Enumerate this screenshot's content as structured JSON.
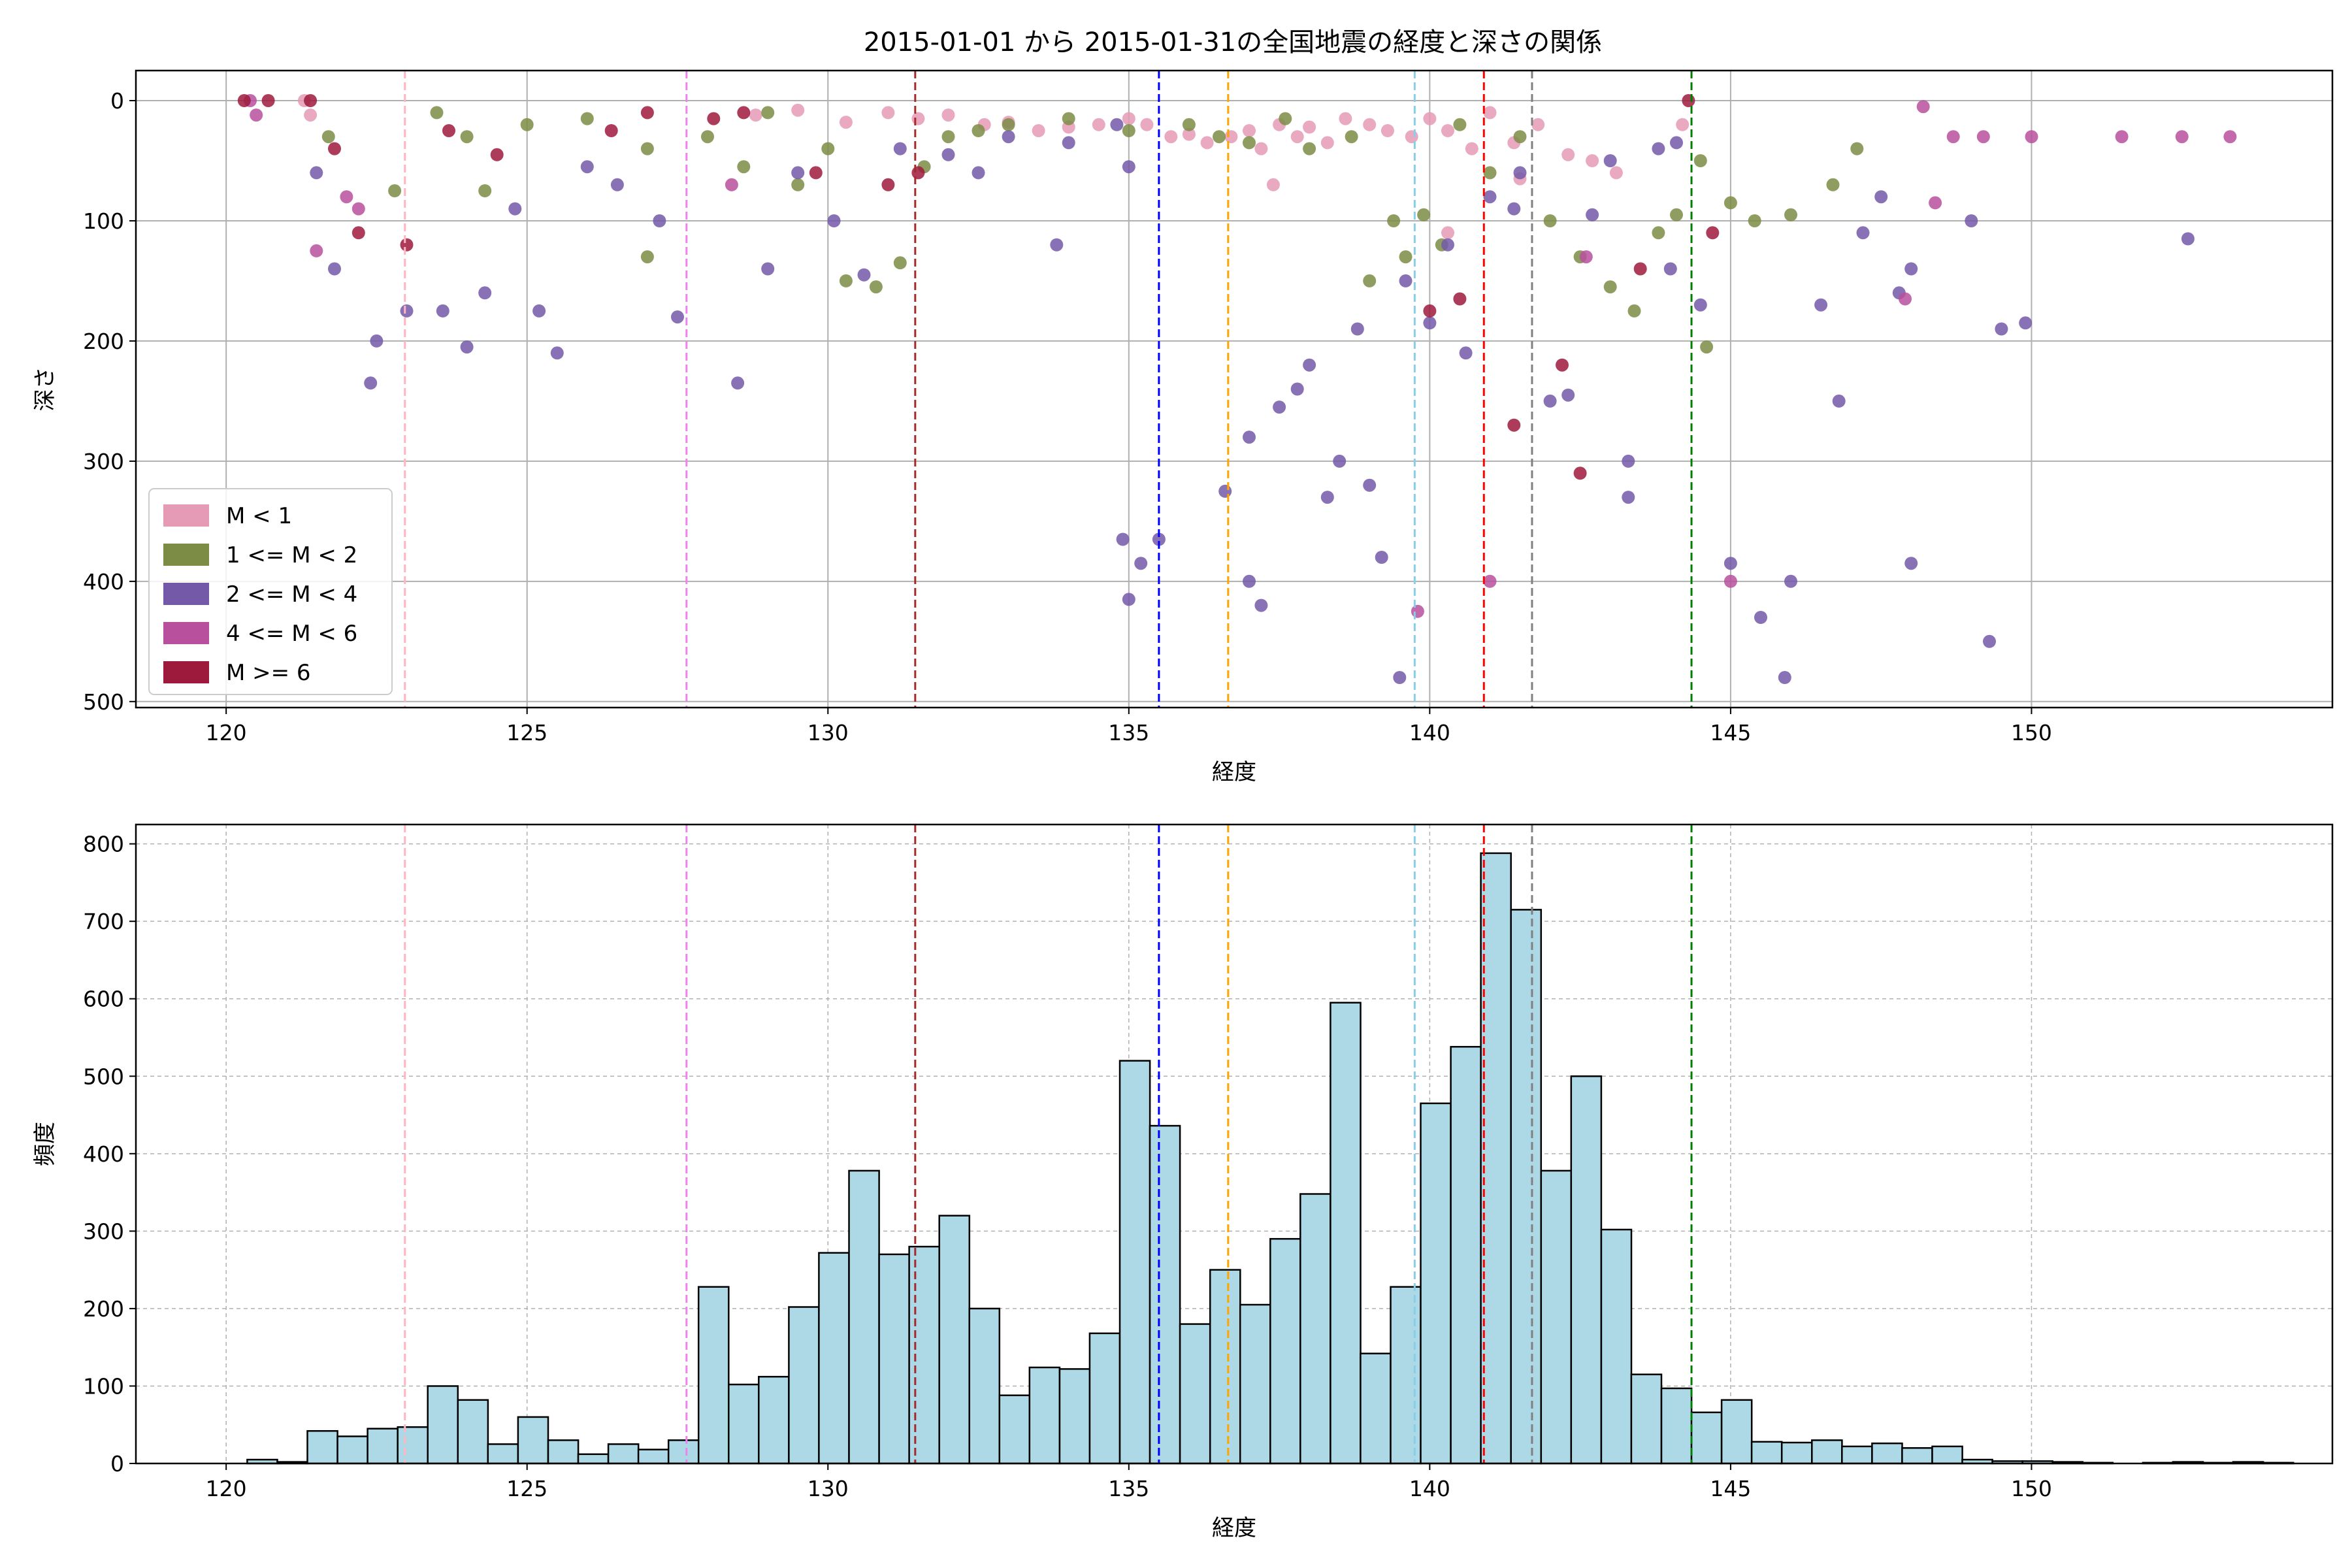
{
  "figure": {
    "title": "2015-01-01 から 2015-01-31の全国地震の経度と深さの関係"
  },
  "reference_lines": [
    {
      "x": 122.97,
      "color": "#ffb6c1"
    },
    {
      "x": 127.65,
      "color": "#ee82ee"
    },
    {
      "x": 131.45,
      "color": "#a52a2a"
    },
    {
      "x": 135.5,
      "color": "#0000ff"
    },
    {
      "x": 136.65,
      "color": "#ffa500"
    },
    {
      "x": 139.75,
      "color": "#87ceeb"
    },
    {
      "x": 140.9,
      "color": "#ff0000"
    },
    {
      "x": 141.7,
      "color": "#808080"
    },
    {
      "x": 144.35,
      "color": "#008000"
    }
  ],
  "chart_data": [
    {
      "type": "scatter",
      "title": "2015-01-01 から 2015-01-31の全国地震の経度と深さの関係",
      "xlabel": "経度",
      "ylabel": "深さ",
      "xlim": [
        118.5,
        155
      ],
      "ylim": [
        505,
        -25
      ],
      "y_inverted": true,
      "xticks": [
        "120",
        "125",
        "130",
        "135",
        "140",
        "145",
        "150"
      ],
      "yticks": [
        "0",
        "100",
        "200",
        "300",
        "400",
        "500"
      ],
      "grid": true,
      "legend_placement": "lower-left",
      "legend": [
        {
          "label": "M < 1",
          "color": "#e59bb6"
        },
        {
          "label": "1 <= M < 2",
          "color": "#7c8c45"
        },
        {
          "label": "2 <= M < 4",
          "color": "#7359a8"
        },
        {
          "label": "4 <= M < 6",
          "color": "#b8509e"
        },
        {
          "label": "M >= 6",
          "color": "#9e1a3c"
        }
      ],
      "series": [
        {
          "name": "M < 1",
          "color": "#e59bb6",
          "points": [
            [
              131.0,
              10
            ],
            [
              131.5,
              15
            ],
            [
              132.0,
              12
            ],
            [
              132.6,
              20
            ],
            [
              133.0,
              18
            ],
            [
              133.5,
              25
            ],
            [
              134.0,
              22
            ],
            [
              134.5,
              20
            ],
            [
              135.0,
              15
            ],
            [
              135.3,
              20
            ],
            [
              135.7,
              30
            ],
            [
              136.0,
              28
            ],
            [
              136.3,
              35
            ],
            [
              136.7,
              30
            ],
            [
              137.0,
              25
            ],
            [
              137.2,
              40
            ],
            [
              137.5,
              20
            ],
            [
              137.8,
              30
            ],
            [
              138.0,
              22
            ],
            [
              138.3,
              35
            ],
            [
              138.6,
              15
            ],
            [
              139.0,
              20
            ],
            [
              139.3,
              25
            ],
            [
              139.7,
              30
            ],
            [
              140.0,
              15
            ],
            [
              140.3,
              25
            ],
            [
              140.7,
              40
            ],
            [
              141.0,
              10
            ],
            [
              141.4,
              35
            ],
            [
              141.8,
              20
            ],
            [
              142.3,
              45
            ],
            [
              142.7,
              50
            ],
            [
              143.1,
              60
            ],
            [
              128.8,
              12
            ],
            [
              129.5,
              8
            ],
            [
              130.3,
              18
            ],
            [
              121.3,
              0
            ],
            [
              121.4,
              12
            ],
            [
              137.4,
              70
            ],
            [
              141.5,
              65
            ],
            [
              140.3,
              110
            ],
            [
              144.2,
              20
            ]
          ]
        },
        {
          "name": "1 <= M < 2",
          "color": "#7c8c45",
          "points": [
            [
              123.5,
              10
            ],
            [
              124.0,
              30
            ],
            [
              124.3,
              75
            ],
            [
              125.0,
              20
            ],
            [
              126.0,
              15
            ],
            [
              127.0,
              40
            ],
            [
              128.0,
              30
            ],
            [
              128.6,
              55
            ],
            [
              129.0,
              10
            ],
            [
              129.5,
              70
            ],
            [
              130.0,
              40
            ],
            [
              130.3,
              150
            ],
            [
              130.8,
              155
            ],
            [
              131.2,
              135
            ],
            [
              131.6,
              55
            ],
            [
              132.0,
              30
            ],
            [
              132.5,
              25
            ],
            [
              133.0,
              20
            ],
            [
              134.0,
              15
            ],
            [
              135.0,
              25
            ],
            [
              136.0,
              20
            ],
            [
              136.5,
              30
            ],
            [
              137.0,
              35
            ],
            [
              137.6,
              15
            ],
            [
              138.0,
              40
            ],
            [
              138.7,
              30
            ],
            [
              139.0,
              150
            ],
            [
              139.4,
              100
            ],
            [
              139.6,
              130
            ],
            [
              139.9,
              95
            ],
            [
              140.2,
              120
            ],
            [
              140.5,
              20
            ],
            [
              141.0,
              60
            ],
            [
              141.5,
              30
            ],
            [
              142.0,
              100
            ],
            [
              142.5,
              130
            ],
            [
              143.0,
              155
            ],
            [
              143.4,
              175
            ],
            [
              143.8,
              110
            ],
            [
              144.1,
              95
            ],
            [
              144.5,
              50
            ],
            [
              145.0,
              85
            ],
            [
              145.4,
              100
            ],
            [
              146.0,
              95
            ],
            [
              146.7,
              70
            ],
            [
              147.1,
              40
            ],
            [
              144.6,
              205
            ],
            [
              127.0,
              130
            ],
            [
              121.7,
              30
            ],
            [
              122.8,
              75
            ]
          ]
        },
        {
          "name": "2 <= M < 4",
          "color": "#7359a8",
          "points": [
            [
              121.5,
              60
            ],
            [
              121.8,
              140
            ],
            [
              122.5,
              200
            ],
            [
              122.4,
              235
            ],
            [
              123.0,
              175
            ],
            [
              123.6,
              175
            ],
            [
              124.0,
              205
            ],
            [
              124.3,
              160
            ],
            [
              124.8,
              90
            ],
            [
              125.2,
              175
            ],
            [
              125.5,
              210
            ],
            [
              126.0,
              55
            ],
            [
              126.5,
              70
            ],
            [
              127.2,
              100
            ],
            [
              127.5,
              180
            ],
            [
              128.5,
              235
            ],
            [
              129.0,
              140
            ],
            [
              129.5,
              60
            ],
            [
              130.1,
              100
            ],
            [
              130.6,
              145
            ],
            [
              131.2,
              40
            ],
            [
              132.0,
              45
            ],
            [
              132.5,
              60
            ],
            [
              133.0,
              30
            ],
            [
              134.0,
              35
            ],
            [
              134.8,
              20
            ],
            [
              135.0,
              55
            ],
            [
              134.9,
              365
            ],
            [
              135.2,
              385
            ],
            [
              135.5,
              365
            ],
            [
              135.0,
              415
            ],
            [
              136.6,
              325
            ],
            [
              137.0,
              400
            ],
            [
              137.2,
              420
            ],
            [
              137.0,
              280
            ],
            [
              137.5,
              255
            ],
            [
              137.8,
              240
            ],
            [
              138.0,
              220
            ],
            [
              138.3,
              330
            ],
            [
              138.5,
              300
            ],
            [
              138.8,
              190
            ],
            [
              139.0,
              320
            ],
            [
              139.2,
              380
            ],
            [
              139.5,
              480
            ],
            [
              139.6,
              150
            ],
            [
              140.0,
              185
            ],
            [
              140.3,
              120
            ],
            [
              140.6,
              210
            ],
            [
              141.0,
              80
            ],
            [
              141.5,
              60
            ],
            [
              142.0,
              250
            ],
            [
              142.3,
              245
            ],
            [
              142.7,
              95
            ],
            [
              143.0,
              50
            ],
            [
              143.3,
              300
            ],
            [
              143.3,
              330
            ],
            [
              143.8,
              40
            ],
            [
              144.0,
              140
            ],
            [
              144.5,
              170
            ],
            [
              145.0,
              385
            ],
            [
              145.5,
              430
            ],
            [
              145.9,
              480
            ],
            [
              146.0,
              400
            ],
            [
              146.5,
              170
            ],
            [
              146.8,
              250
            ],
            [
              147.2,
              110
            ],
            [
              147.5,
              80
            ],
            [
              147.8,
              160
            ],
            [
              148.0,
              385
            ],
            [
              148.0,
              140
            ],
            [
              149.0,
              100
            ],
            [
              149.3,
              450
            ],
            [
              149.5,
              190
            ],
            [
              149.9,
              185
            ],
            [
              152.6,
              115
            ],
            [
              133.8,
              120
            ],
            [
              144.1,
              35
            ],
            [
              141.4,
              90
            ]
          ]
        },
        {
          "name": "4 <= M < 6",
          "color": "#b8509e",
          "points": [
            [
              120.4,
              0
            ],
            [
              120.5,
              12
            ],
            [
              121.5,
              125
            ],
            [
              122.0,
              80
            ],
            [
              122.2,
              90
            ],
            [
              128.4,
              70
            ],
            [
              139.8,
              425
            ],
            [
              141.0,
              400
            ],
            [
              142.6,
              130
            ],
            [
              145.0,
              400
            ],
            [
              147.9,
              165
            ],
            [
              148.2,
              5
            ],
            [
              148.4,
              85
            ],
            [
              148.7,
              30
            ],
            [
              149.2,
              30
            ],
            [
              150.0,
              30
            ],
            [
              151.5,
              30
            ],
            [
              152.5,
              30
            ],
            [
              153.3,
              30
            ]
          ]
        },
        {
          "name": "M >= 6",
          "color": "#9e1a3c",
          "points": [
            [
              120.3,
              0
            ],
            [
              120.7,
              0
            ],
            [
              121.4,
              0
            ],
            [
              121.8,
              40
            ],
            [
              122.2,
              110
            ],
            [
              123.0,
              120
            ],
            [
              123.7,
              25
            ],
            [
              124.5,
              45
            ],
            [
              126.4,
              25
            ],
            [
              127.0,
              10
            ],
            [
              128.1,
              15
            ],
            [
              128.6,
              10
            ],
            [
              129.8,
              60
            ],
            [
              131.0,
              70
            ],
            [
              131.5,
              60
            ],
            [
              140.0,
              175
            ],
            [
              140.5,
              165
            ],
            [
              141.4,
              270
            ],
            [
              142.2,
              220
            ],
            [
              142.5,
              310
            ],
            [
              143.5,
              140
            ],
            [
              144.3,
              0
            ],
            [
              144.7,
              110
            ]
          ]
        }
      ]
    },
    {
      "type": "bar",
      "title": "",
      "xlabel": "経度",
      "ylabel": "頻度",
      "xlim": [
        118.5,
        155
      ],
      "ylim": [
        0,
        825
      ],
      "xticks": [
        "120",
        "125",
        "130",
        "135",
        "140",
        "145",
        "150"
      ],
      "yticks": [
        "0",
        "100",
        "200",
        "300",
        "400",
        "500",
        "600",
        "700",
        "800"
      ],
      "grid": true,
      "bar_color": "#add8e6",
      "bin_start": 120.35,
      "bin_width": 0.5,
      "values": [
        5,
        2,
        42,
        35,
        45,
        47,
        100,
        82,
        25,
        60,
        30,
        12,
        25,
        18,
        30,
        228,
        102,
        112,
        202,
        272,
        378,
        270,
        280,
        320,
        200,
        88,
        124,
        122,
        168,
        520,
        436,
        180,
        250,
        205,
        290,
        348,
        595,
        142,
        228,
        465,
        538,
        788,
        715,
        378,
        500,
        302,
        115,
        97,
        66,
        82,
        28,
        27,
        30,
        22,
        26,
        20,
        22,
        5,
        3,
        3,
        2,
        1,
        0,
        1,
        2,
        1,
        2,
        1
      ]
    }
  ]
}
